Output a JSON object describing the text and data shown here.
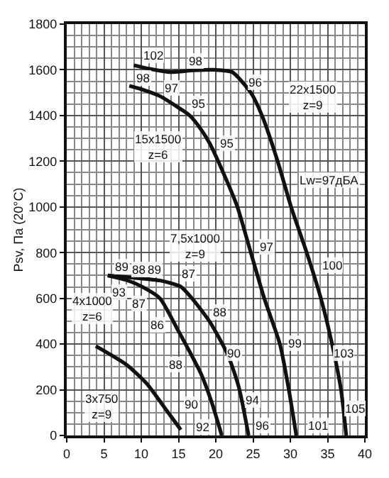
{
  "chart_data": {
    "type": "line",
    "ylabel": "Psv, Па (20°C)",
    "series": [
      {
        "color": "#111111",
        "x": [
          9,
          11,
          14,
          17,
          19.8,
          22.2,
          24.7,
          26.2,
          28.3,
          30.1,
          32.2,
          34.1,
          35.6,
          36.8,
          37.5
        ],
        "values": [
          1620,
          1605,
          1590,
          1598,
          1600,
          1590,
          1500,
          1400,
          1200,
          1000,
          800,
          600,
          400,
          200,
          0
        ]
      },
      {
        "color": "#111111",
        "x": [
          8.4,
          10.5,
          12.5,
          14.5,
          16.5,
          18,
          19.2,
          21,
          22.9,
          24.7,
          26.5,
          28.6,
          29.8,
          30.8
        ],
        "values": [
          1530,
          1510,
          1485,
          1445,
          1400,
          1340,
          1277,
          1150,
          1000,
          800,
          600,
          400,
          200,
          0
        ]
      },
      {
        "color": "#111111",
        "x": [
          5.5,
          9,
          12.5,
          15.3,
          16.8,
          19.2,
          21.6,
          23.1,
          24.4
        ],
        "values": [
          700,
          690,
          678,
          651,
          600,
          497,
          354,
          210,
          0
        ]
      },
      {
        "color": "#111111",
        "x": [
          5.5,
          8,
          10.1,
          12.5,
          15,
          18,
          19.5,
          20.8
        ],
        "values": [
          700,
          680,
          651,
          600,
          456,
          271,
          140,
          0
        ]
      },
      {
        "color": "#111111",
        "x": [
          3.9,
          8,
          10.7,
          13.5,
          15.3
        ],
        "values": [
          391,
          310,
          228,
          105,
          25
        ]
      }
    ],
    "xlim": [
      0,
      40
    ],
    "xticks": [
      0,
      5,
      10,
      15,
      20,
      25,
      30,
      35,
      40
    ],
    "ylim": [
      0,
      1800
    ],
    "yticks": [
      0,
      200,
      400,
      600,
      800,
      1000,
      1200,
      1400,
      1600,
      1800
    ],
    "grid": true,
    "marker": "none",
    "line_style": "solid",
    "annotations": [
      "Lw=97дБА",
      {
        "text": "22x1500\nz=9",
        "x": 33,
        "y": 1480
      },
      {
        "text": "15x1500\nz=6",
        "x": 12.2,
        "y": 1265
      },
      {
        "text": "7,5x1000\nz=9",
        "x": 17.3,
        "y": 830
      },
      {
        "text": "4x1000\nz=6",
        "x": 3.4,
        "y": 555
      },
      {
        "text": "3x750\nz=9",
        "x": 4.7,
        "y": 130
      },
      {
        "text": "102",
        "x": 11.6,
        "y": 1663
      },
      {
        "text": "98",
        "x": 17.3,
        "y": 1640
      },
      {
        "text": "96",
        "x": 25.3,
        "y": 1543
      },
      {
        "text": "98",
        "x": 10.3,
        "y": 1564
      },
      {
        "text": "97",
        "x": 14.1,
        "y": 1523
      },
      {
        "text": "95",
        "x": 17.7,
        "y": 1451
      },
      {
        "text": "95",
        "x": 21.5,
        "y": 1277
      },
      {
        "text": "97",
        "x": 26.8,
        "y": 826
      },
      {
        "text": "100",
        "x": 35.6,
        "y": 743
      },
      {
        "text": "99",
        "x": 30.6,
        "y": 405
      },
      {
        "text": "103",
        "x": 37.1,
        "y": 358
      },
      {
        "text": "105",
        "x": 38.6,
        "y": 118
      },
      {
        "text": "101",
        "x": 33.8,
        "y": 46
      },
      {
        "text": "96",
        "x": 26.3,
        "y": 46
      },
      {
        "text": "94",
        "x": 25.0,
        "y": 158
      },
      {
        "text": "90",
        "x": 22.5,
        "y": 363
      },
      {
        "text": "88",
        "x": 20.6,
        "y": 542
      },
      {
        "text": "87",
        "x": 16.4,
        "y": 706
      },
      {
        "text": "89",
        "x": 7.4,
        "y": 738
      },
      {
        "text": "88",
        "x": 9.8,
        "y": 726
      },
      {
        "text": "89",
        "x": 11.9,
        "y": 726
      },
      {
        "text": "93",
        "x": 7.1,
        "y": 630
      },
      {
        "text": "87",
        "x": 9.8,
        "y": 578
      },
      {
        "text": "86",
        "x": 12.1,
        "y": 485
      },
      {
        "text": "88",
        "x": 14.7,
        "y": 311
      },
      {
        "text": "90",
        "x": 16.8,
        "y": 138
      },
      {
        "text": "92",
        "x": 18.3,
        "y": 35
      }
    ]
  }
}
